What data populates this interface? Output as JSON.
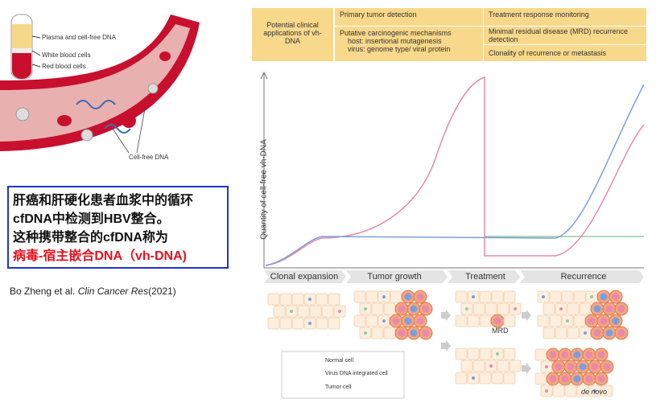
{
  "illustration": {
    "labels": [
      "Plasma and cell-free DNA",
      "White blood cells",
      "Red blood cells",
      "Cell-free DNA"
    ]
  },
  "summary": {
    "lines": [
      "肝癌和肝硬化患者血浆中的循环",
      "cfDNA中检测到HBV整合。",
      "这种携带整合的cfDNA称为",
      "病毒-宿主嵌合DNA（vh-DNA)"
    ]
  },
  "citation": {
    "authors": "Bo Zheng et al.",
    "journal": "Clin Cancer Res",
    "year": "(2021)"
  },
  "table": {
    "header": "Potential clinical applications of vh-DNA",
    "columns": [
      {
        "title": "Primary tumor detection",
        "subtitle": "Putative carcinogenic mechanisms",
        "items": [
          "host: insertional mutagenesis",
          "virus: genome type/ viral protein"
        ]
      },
      {
        "title": "Treatment response monitoring",
        "subtitle": "Minimal residual disease (MRD) recurrence detection",
        "extra": "Clonality of recurrence or metastasis"
      }
    ]
  },
  "graph": {
    "y_label": "Quantity of cell-free vh-DNA",
    "phases": [
      "Clonal expansion",
      "Tumor growth",
      "Treatment",
      "Recurrence"
    ],
    "mrd": "MRD",
    "de_novo": "de novo"
  },
  "legend": [
    "Normal cell",
    "Virus DNA integrated cell",
    "Tumor cell"
  ]
}
